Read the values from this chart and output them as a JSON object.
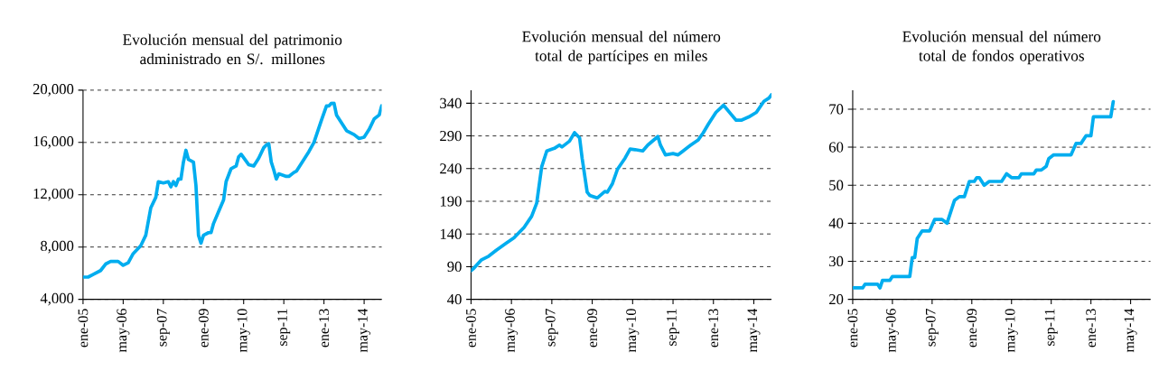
{
  "chart_data": [
    {
      "type": "line",
      "title": "Evolución mensual del patrimonio administrado en S/. millones",
      "color": "#00adef",
      "grid": "y",
      "line_style": "solid",
      "marker": "none",
      "x": [
        "2005-01",
        "2005-03",
        "2005-05",
        "2005-08",
        "2005-10",
        "2005-12",
        "2006-03",
        "2006-05",
        "2006-07",
        "2006-09",
        "2006-12",
        "2007-02",
        "2007-04",
        "2007-06",
        "2007-07",
        "2007-09",
        "2007-11",
        "2007-12",
        "2008-01",
        "2008-02",
        "2008-03",
        "2008-04",
        "2008-05",
        "2008-06",
        "2008-07",
        "2008-09",
        "2008-10",
        "2008-11",
        "2008-12",
        "2009-01",
        "2009-03",
        "2009-04",
        "2009-05",
        "2009-07",
        "2009-09",
        "2009-10",
        "2009-12",
        "2010-02",
        "2010-03",
        "2010-04",
        "2010-07",
        "2010-09",
        "2010-11",
        "2011-01",
        "2011-02",
        "2011-03",
        "2011-04",
        "2011-05",
        "2011-06",
        "2011-07",
        "2011-10",
        "2011-11",
        "2012-01",
        "2012-02",
        "2012-04",
        "2012-05",
        "2012-07",
        "2012-09",
        "2012-12",
        "2013-02",
        "2013-03",
        "2013-04",
        "2013-05",
        "2013-06",
        "2013-08",
        "2013-10",
        "2014-01",
        "2014-03",
        "2014-05",
        "2014-07",
        "2014-09",
        "2014-11",
        "2014-12"
      ],
      "values": [
        5700,
        5700,
        5900,
        6200,
        6700,
        6900,
        6900,
        6600,
        6800,
        7500,
        8100,
        8900,
        11000,
        11800,
        13000,
        12900,
        13000,
        12600,
        13000,
        12700,
        13200,
        13200,
        14500,
        15400,
        14700,
        14500,
        12700,
        8900,
        8300,
        8900,
        9100,
        9100,
        9800,
        10700,
        11600,
        13000,
        14000,
        14200,
        14900,
        15100,
        14300,
        14200,
        14800,
        15600,
        15800,
        15900,
        14500,
        13900,
        13200,
        13600,
        13400,
        13400,
        13700,
        13800,
        14400,
        14700,
        15300,
        16000,
        17700,
        18800,
        18800,
        19000,
        19000,
        18100,
        17500,
        16900,
        16600,
        16300,
        16400,
        17000,
        17800,
        18100,
        18800
      ],
      "xlim": [
        "2005-01",
        "2014-12"
      ],
      "ylim": [
        4000,
        20000
      ],
      "yticks": [
        {
          "value": 4000,
          "label": "4,000"
        },
        {
          "value": 8000,
          "label": "8,000"
        },
        {
          "value": 12000,
          "label": "12,000"
        },
        {
          "value": 16000,
          "label": "16,000"
        },
        {
          "value": 20000,
          "label": "20,000"
        }
      ],
      "xticks": [
        {
          "value": "2005-01",
          "label": "ene-05"
        },
        {
          "value": "2006-05",
          "label": "may-06"
        },
        {
          "value": "2007-09",
          "label": "sep-07"
        },
        {
          "value": "2009-01",
          "label": "ene-09"
        },
        {
          "value": "2010-05",
          "label": "may-10"
        },
        {
          "value": "2011-09",
          "label": "sep-11"
        },
        {
          "value": "2013-01",
          "label": "ene-13"
        },
        {
          "value": "2014-05",
          "label": "may-14"
        }
      ]
    },
    {
      "type": "line",
      "title": "Evolución mensual del número total de partícipes en miles",
      "color": "#00adef",
      "grid": "y",
      "line_style": "solid",
      "marker": "none",
      "x": [
        "2005-01",
        "2005-02",
        "2005-05",
        "2005-08",
        "2005-11",
        "2006-03",
        "2006-06",
        "2006-10",
        "2007-01",
        "2007-03",
        "2007-05",
        "2007-07",
        "2007-10",
        "2007-12",
        "2008-01",
        "2008-04",
        "2008-06",
        "2008-08",
        "2008-09",
        "2008-11",
        "2008-12",
        "2009-03",
        "2009-06",
        "2009-07",
        "2009-09",
        "2009-11",
        "2010-02",
        "2010-04",
        "2010-06",
        "2010-09",
        "2010-11",
        "2011-03",
        "2011-04",
        "2011-06",
        "2011-09",
        "2011-11",
        "2012-01",
        "2012-04",
        "2012-07",
        "2012-09",
        "2012-11",
        "2013-02",
        "2013-05",
        "2013-08",
        "2013-10",
        "2013-12",
        "2014-03",
        "2014-06",
        "2014-09",
        "2014-11",
        "2014-12"
      ],
      "values": [
        84,
        87,
        100,
        106,
        115,
        126,
        134,
        150,
        167,
        187,
        243,
        267,
        271,
        276,
        273,
        282,
        295,
        287,
        256,
        204,
        199,
        195,
        205,
        204,
        217,
        239,
        256,
        270,
        269,
        267,
        276,
        289,
        276,
        261,
        263,
        261,
        267,
        276,
        284,
        295,
        308,
        326,
        337,
        323,
        314,
        314,
        319,
        326,
        343,
        348,
        353
      ],
      "xlim": [
        "2005-01",
        "2014-12"
      ],
      "ylim": [
        40,
        360
      ],
      "yticks": [
        40,
        90,
        140,
        190,
        240,
        290,
        340
      ],
      "xticks": [
        {
          "value": "2005-01",
          "label": "ene-05"
        },
        {
          "value": "2006-05",
          "label": "may-06"
        },
        {
          "value": "2007-09",
          "label": "sep-07"
        },
        {
          "value": "2009-01",
          "label": "ene-09"
        },
        {
          "value": "2010-05",
          "label": "may-10"
        },
        {
          "value": "2011-09",
          "label": "sep-11"
        },
        {
          "value": "2013-01",
          "label": "ene-13"
        },
        {
          "value": "2014-05",
          "label": "may-14"
        }
      ]
    },
    {
      "type": "line",
      "title": "Evolución mensual del número total de fondos operativos",
      "color": "#00adef",
      "grid": "y",
      "line_style": "solid",
      "marker": "none",
      "x": [
        "2005-01",
        "2005-05",
        "2005-06",
        "2005-11",
        "2005-12",
        "2006-01",
        "2006-04",
        "2006-05",
        "2006-12",
        "2007-01",
        "2007-02",
        "2007-03",
        "2007-05",
        "2007-08",
        "2007-10",
        "2008-01",
        "2008-03",
        "2008-04",
        "2008-06",
        "2008-08",
        "2008-10",
        "2008-12",
        "2009-02",
        "2009-03",
        "2009-04",
        "2009-06",
        "2009-08",
        "2010-01",
        "2010-03",
        "2010-05",
        "2010-08",
        "2010-09",
        "2011-02",
        "2011-03",
        "2011-05",
        "2011-07",
        "2011-08",
        "2011-10",
        "2012-05",
        "2012-07",
        "2012-09",
        "2012-11",
        "2013-01",
        "2013-02",
        "2013-09",
        "2013-10"
      ],
      "values": [
        23,
        23,
        24,
        24,
        23,
        25,
        25,
        26,
        26,
        31,
        31,
        36,
        38,
        38,
        41,
        41,
        40,
        42,
        46,
        47,
        47,
        51,
        51,
        52,
        52,
        50,
        51,
        51,
        53,
        52,
        52,
        53,
        53,
        54,
        54,
        55,
        57,
        58,
        58,
        61,
        61,
        63,
        63,
        68,
        68,
        72
      ],
      "xlim": [
        "2005-01",
        "2015-01"
      ],
      "ylim": [
        20,
        75
      ],
      "yticks": [
        20,
        30,
        40,
        50,
        60,
        70
      ],
      "xticks": [
        {
          "value": "2005-01",
          "label": "ene-05"
        },
        {
          "value": "2006-05",
          "label": "may-06"
        },
        {
          "value": "2007-09",
          "label": "sep-07"
        },
        {
          "value": "2009-01",
          "label": "ene-09"
        },
        {
          "value": "2010-05",
          "label": "may-10"
        },
        {
          "value": "2011-09",
          "label": "sep-11"
        },
        {
          "value": "2013-01",
          "label": "ene-13"
        },
        {
          "value": "2014-05",
          "label": "may-14"
        }
      ]
    }
  ]
}
